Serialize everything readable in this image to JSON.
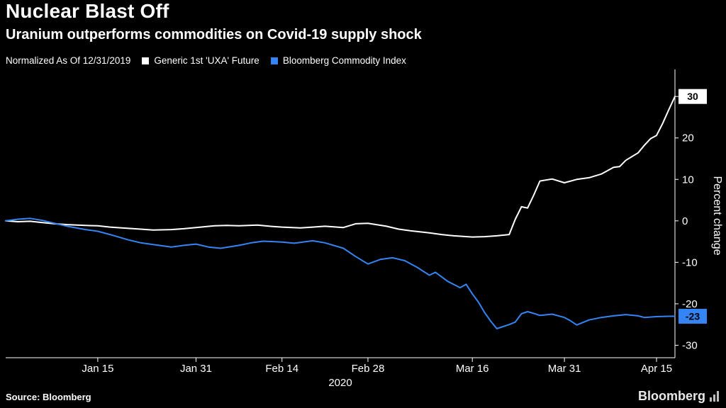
{
  "header": {
    "title": "Nuclear Blast Off",
    "subtitle": "Uranium outperforms commodities on Covid-19 supply shock"
  },
  "legend": {
    "note": "Normalized As Of 12/31/2019",
    "series": [
      {
        "label": "Generic 1st 'UXA' Future",
        "color": "#ffffff"
      },
      {
        "label": "Bloomberg Commodity Index",
        "color": "#3584f4"
      }
    ]
  },
  "chart_data": {
    "type": "line",
    "title": "Nuclear Blast Off",
    "subtitle": "Uranium outperforms commodities on Covid-19 supply shock",
    "normalization_note": "Normalized As Of 12/31/2019",
    "x_unit": "days since 2019-12-31 (year 2020)",
    "xlim": [
      0,
      109
    ],
    "ylim": [
      -33,
      35.5
    ],
    "ylabel": "Percent change",
    "grid": "off",
    "legend_position": "top",
    "y_ticks": [
      {
        "value": 30,
        "label": "30"
      },
      {
        "value": 20,
        "label": "20"
      },
      {
        "value": 10,
        "label": "10"
      },
      {
        "value": 0,
        "label": "0"
      },
      {
        "value": -10,
        "label": "-10"
      },
      {
        "value": -20,
        "label": "-20"
      },
      {
        "value": -30,
        "label": "-30"
      }
    ],
    "x_ticks": [
      {
        "day": 15,
        "label": "Jan 15"
      },
      {
        "day": 31,
        "label": "Jan 31"
      },
      {
        "day": 45,
        "label": "Feb 14"
      },
      {
        "day": 59,
        "label": "Feb 28"
      },
      {
        "day": 76,
        "label": "Mar 16"
      },
      {
        "day": 91,
        "label": "Mar 31"
      },
      {
        "day": 106,
        "label": "Apr 15"
      }
    ],
    "x_axis_year_label": "2020",
    "series": [
      {
        "name": "Generic 1st 'UXA' Future",
        "color": "#ffffff",
        "end_label": "30",
        "end_label_bg": "#ffffff",
        "points": [
          [
            0,
            0
          ],
          [
            2,
            -0.2
          ],
          [
            4,
            -0.1
          ],
          [
            6,
            -0.4
          ],
          [
            8,
            -0.7
          ],
          [
            10,
            -0.9
          ],
          [
            13,
            -1.1
          ],
          [
            15,
            -1.2
          ],
          [
            17,
            -1.5
          ],
          [
            20,
            -1.8
          ],
          [
            22,
            -2.0
          ],
          [
            24,
            -2.2
          ],
          [
            27,
            -2.1
          ],
          [
            29,
            -1.9
          ],
          [
            31,
            -1.6
          ],
          [
            34,
            -1.2
          ],
          [
            36,
            -1.1
          ],
          [
            38,
            -1.2
          ],
          [
            41,
            -1.0
          ],
          [
            43,
            -1.3
          ],
          [
            45,
            -1.5
          ],
          [
            48,
            -1.7
          ],
          [
            50,
            -1.5
          ],
          [
            52,
            -1.3
          ],
          [
            55,
            -1.6
          ],
          [
            57,
            -0.7
          ],
          [
            59,
            -0.6
          ],
          [
            62,
            -1.3
          ],
          [
            64,
            -2.0
          ],
          [
            66,
            -2.4
          ],
          [
            69,
            -2.9
          ],
          [
            71,
            -3.3
          ],
          [
            73,
            -3.6
          ],
          [
            76,
            -3.9
          ],
          [
            78,
            -3.8
          ],
          [
            80,
            -3.6
          ],
          [
            82,
            -3.3
          ],
          [
            83,
            0.4
          ],
          [
            84,
            3.4
          ],
          [
            85,
            3.1
          ],
          [
            86,
            6.2
          ],
          [
            87,
            9.6
          ],
          [
            89,
            10.1
          ],
          [
            91,
            9.2
          ],
          [
            93,
            10.0
          ],
          [
            95,
            10.4
          ],
          [
            97,
            11.3
          ],
          [
            99,
            12.9
          ],
          [
            100,
            13.1
          ],
          [
            101,
            14.6
          ],
          [
            103,
            16.4
          ],
          [
            104,
            18.2
          ],
          [
            105,
            19.8
          ],
          [
            106,
            20.6
          ],
          [
            107,
            23.5
          ],
          [
            108,
            26.8
          ],
          [
            109,
            30
          ]
        ]
      },
      {
        "name": "Bloomberg Commodity Index",
        "color": "#3584f4",
        "end_label": "-23",
        "end_label_bg": "#3584f4",
        "points": [
          [
            0,
            0
          ],
          [
            2,
            0.4
          ],
          [
            4,
            0.6
          ],
          [
            6,
            0.1
          ],
          [
            8,
            -0.6
          ],
          [
            10,
            -1.3
          ],
          [
            13,
            -2.1
          ],
          [
            15,
            -2.5
          ],
          [
            17,
            -3.3
          ],
          [
            20,
            -4.6
          ],
          [
            22,
            -5.3
          ],
          [
            24,
            -5.7
          ],
          [
            27,
            -6.3
          ],
          [
            29,
            -5.9
          ],
          [
            31,
            -5.6
          ],
          [
            33,
            -6.3
          ],
          [
            35,
            -6.6
          ],
          [
            38,
            -5.9
          ],
          [
            40,
            -5.3
          ],
          [
            42,
            -4.9
          ],
          [
            45,
            -5.1
          ],
          [
            47,
            -5.4
          ],
          [
            50,
            -4.8
          ],
          [
            52,
            -5.3
          ],
          [
            55,
            -6.6
          ],
          [
            57,
            -8.6
          ],
          [
            59,
            -10.4
          ],
          [
            61,
            -9.3
          ],
          [
            63,
            -8.9
          ],
          [
            65,
            -9.6
          ],
          [
            67,
            -11.2
          ],
          [
            69,
            -13.1
          ],
          [
            70,
            -12.4
          ],
          [
            72,
            -14.6
          ],
          [
            74,
            -16.1
          ],
          [
            75,
            -15.3
          ],
          [
            76,
            -17.6
          ],
          [
            77,
            -19.6
          ],
          [
            78,
            -22.1
          ],
          [
            79,
            -24.2
          ],
          [
            80,
            -26.0
          ],
          [
            82,
            -25.0
          ],
          [
            83,
            -24.4
          ],
          [
            84,
            -22.4
          ],
          [
            85,
            -21.9
          ],
          [
            86,
            -22.3
          ],
          [
            87,
            -22.8
          ],
          [
            89,
            -22.5
          ],
          [
            91,
            -23.3
          ],
          [
            92,
            -24.1
          ],
          [
            93,
            -25.1
          ],
          [
            95,
            -23.9
          ],
          [
            97,
            -23.3
          ],
          [
            99,
            -22.9
          ],
          [
            101,
            -22.6
          ],
          [
            103,
            -22.9
          ],
          [
            104,
            -23.3
          ],
          [
            106,
            -23.1
          ],
          [
            108,
            -23.0
          ],
          [
            109,
            -23.0
          ]
        ]
      }
    ]
  },
  "footer": {
    "source": "Source: Bloomberg",
    "brand": "Bloomberg"
  },
  "colors": {
    "background": "#000000",
    "axis": "#ffffff",
    "uxa_line": "#ffffff",
    "bci_line": "#3584f4"
  }
}
